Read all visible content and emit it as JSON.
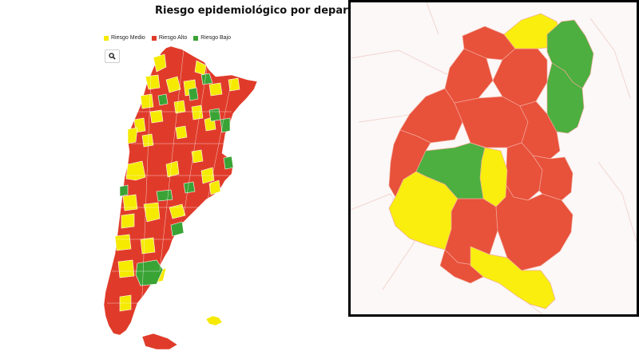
{
  "title": "Riesgo epidemiológico por departamento",
  "legend": [
    {
      "label": "Riesgo Medio",
      "color": "#f5ea00"
    },
    {
      "label": "Riesgo Alto",
      "color": "#e03b2a"
    },
    {
      "label": "Riesgo Bajo",
      "color": "#3aa335"
    }
  ],
  "search": {
    "icon": "search-icon"
  },
  "colors": {
    "high": "#e03b2a",
    "medium": "#f5ea00",
    "low": "#3aa335",
    "inset_high": "#e8513a",
    "inset_medium": "#f9ee0e",
    "inset_low": "#4caf3f",
    "border": "#000000"
  }
}
